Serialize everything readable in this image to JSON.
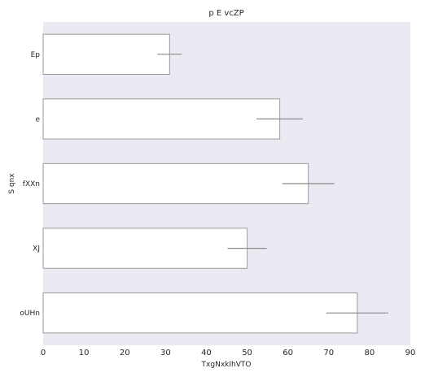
{
  "chart_data": {
    "type": "bar",
    "orientation": "horizontal",
    "title": "p E vcZP",
    "xlabel": "TxgNxkIhVTO",
    "ylabel": "S qnx",
    "categories": [
      "Ep",
      "e",
      "fXXn",
      "XJ",
      "oUHn"
    ],
    "values": [
      31,
      58,
      65,
      50,
      77
    ],
    "error": [
      3,
      5.7,
      6.4,
      4.8,
      7.6
    ],
    "xlim": [
      0,
      90
    ],
    "xticks": [
      0,
      10,
      20,
      30,
      40,
      50,
      60,
      70,
      80,
      90
    ],
    "grid": false,
    "colors": {
      "plot_background": "#eaeaf2",
      "bar_fill": "#ffffff",
      "bar_edge": "#9a9a9a",
      "error_bar": "#8c8c8c"
    }
  }
}
